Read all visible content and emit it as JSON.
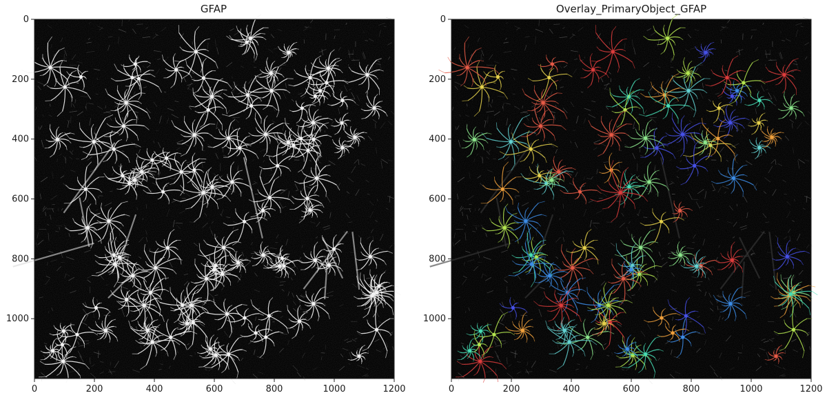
{
  "panels": [
    {
      "id": "gfap",
      "title": "GFAP",
      "kind": "grayscale",
      "xticks": [
        0,
        200,
        400,
        600,
        800,
        1000,
        1200
      ],
      "yticks": [
        0,
        200,
        400,
        600,
        800,
        1000
      ],
      "xlim": [
        0,
        1200
      ],
      "ylim": [
        1200,
        0
      ]
    },
    {
      "id": "overlay",
      "title": "Overlay_PrimaryObject_GFAP",
      "kind": "overlay",
      "xticks": [
        0,
        200,
        400,
        600,
        800,
        1000,
        1200
      ],
      "yticks": [
        0,
        200,
        400,
        600,
        800,
        1000
      ],
      "xlim": [
        0,
        1200
      ],
      "ylim": [
        1200,
        0
      ]
    }
  ],
  "colors": {
    "background": "#000000",
    "signal": "#f2f2f2",
    "overlay_palette": [
      "#4650e6",
      "#63d2d2",
      "#e6d24b",
      "#e65a46",
      "#f0a03c",
      "#8ce68c",
      "#3c8ce6",
      "#b4e650",
      "#dc3c3c",
      "#46dcb4"
    ]
  }
}
